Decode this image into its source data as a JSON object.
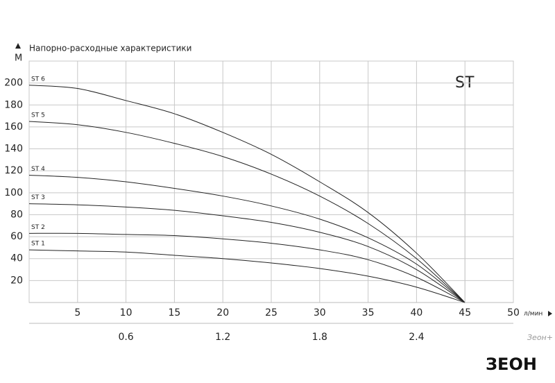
{
  "chart_data": {
    "type": "line",
    "title": "Напорно-расходные характеристики",
    "y_label": "М",
    "x_label": "л/мин",
    "annotation": "ST",
    "watermark": "Зеон+",
    "logo": "ЗЕОН",
    "x": [
      0,
      5,
      10,
      15,
      20,
      25,
      30,
      35,
      40,
      45
    ],
    "series": [
      {
        "name": "ST 1",
        "color": "#222222",
        "values": [
          48,
          47,
          46,
          43,
          40,
          36,
          31,
          24,
          14,
          0
        ]
      },
      {
        "name": "ST 2",
        "color": "#222222",
        "values": [
          63,
          63,
          62,
          61,
          58,
          54,
          48,
          39,
          23,
          0
        ]
      },
      {
        "name": "ST 3",
        "color": "#222222",
        "values": [
          90,
          89,
          87,
          84,
          79,
          73,
          64,
          51,
          30,
          0
        ]
      },
      {
        "name": "ST 4",
        "color": "#222222",
        "values": [
          116,
          114,
          110,
          104,
          97,
          88,
          76,
          59,
          35,
          0
        ]
      },
      {
        "name": "ST 5",
        "color": "#222222",
        "values": [
          165,
          162,
          155,
          145,
          133,
          117,
          97,
          72,
          40,
          0
        ]
      },
      {
        "name": "ST 6",
        "color": "#222222",
        "values": [
          198,
          195,
          184,
          172,
          155,
          135,
          110,
          82,
          45,
          0
        ]
      }
    ],
    "xlim": [
      0,
      50
    ],
    "xticks": [
      5,
      10,
      15,
      20,
      25,
      30,
      35,
      40,
      45,
      50
    ],
    "x2ticks": [
      {
        "value": 10,
        "label": "0.6"
      },
      {
        "value": 20,
        "label": "1.2"
      },
      {
        "value": 30,
        "label": "1.8"
      },
      {
        "value": 40,
        "label": "2.4"
      }
    ],
    "ylim": [
      0,
      220
    ],
    "yticks": [
      20,
      40,
      60,
      80,
      100,
      120,
      140,
      160,
      180,
      200
    ],
    "grid": true
  }
}
